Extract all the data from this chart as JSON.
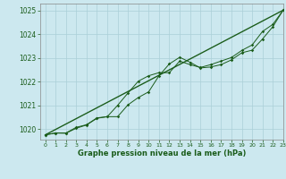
{
  "title": "Graphe pression niveau de la mer (hPa)",
  "bg_color": "#cce8ef",
  "grid_color": "#aacfd8",
  "line_color": "#1a5c1a",
  "xlim": [
    -0.5,
    23
  ],
  "ylim": [
    1019.55,
    1025.3
  ],
  "yticks": [
    1020,
    1021,
    1022,
    1023,
    1024,
    1025
  ],
  "xticks": [
    0,
    1,
    2,
    3,
    4,
    5,
    6,
    7,
    8,
    9,
    10,
    11,
    12,
    13,
    14,
    15,
    16,
    17,
    18,
    19,
    20,
    21,
    22,
    23
  ],
  "series1": [
    1019.75,
    1019.83,
    1019.82,
    1020.03,
    1020.17,
    1020.45,
    1020.52,
    1020.52,
    1021.02,
    1021.33,
    1021.57,
    1022.25,
    1022.75,
    1023.03,
    1022.82,
    1022.58,
    1022.62,
    1022.72,
    1022.92,
    1023.22,
    1023.33,
    1023.8,
    1024.32,
    1025.02
  ],
  "series2": [
    1019.75,
    1019.83,
    1019.83,
    1020.07,
    1020.18,
    1020.47,
    1020.52,
    1021.0,
    1021.52,
    1022.02,
    1022.25,
    1022.38,
    1022.38,
    1022.87,
    1022.72,
    1022.6,
    1022.72,
    1022.87,
    1023.02,
    1023.32,
    1023.55,
    1024.12,
    1024.42,
    1025.02
  ],
  "series3_x": [
    0,
    23
  ],
  "series3_y": [
    1019.75,
    1025.02
  ]
}
